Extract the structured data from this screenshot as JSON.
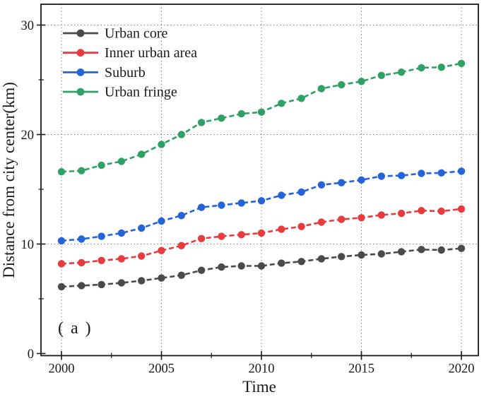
{
  "figure": {
    "annotation": "( a )"
  },
  "chart_data": {
    "type": "line",
    "title": "",
    "xlabel": "Time",
    "ylabel": "Distance from city center(km)",
    "line_style": "dashed",
    "marker": "circle",
    "grid": "dotted-at-major-ticks",
    "legend_position": "top-left-inside",
    "xlim": [
      1999,
      2021
    ],
    "ylim": [
      0,
      32
    ],
    "x_major_ticks": [
      2000,
      2005,
      2010,
      2015,
      2020
    ],
    "x_minor_ticks": [
      2002.5,
      2007.5,
      2012.5,
      2017.5
    ],
    "y_major_ticks": [
      0,
      10,
      20,
      30
    ],
    "y_minor_ticks": [
      5,
      15,
      25
    ],
    "x": [
      2000,
      2001,
      2002,
      2003,
      2004,
      2005,
      2006,
      2007,
      2008,
      2009,
      2010,
      2011,
      2012,
      2013,
      2014,
      2015,
      2016,
      2017,
      2018,
      2019,
      2020
    ],
    "series": [
      {
        "name": "Urban core",
        "color": "#4a4a4a",
        "values": [
          6.1,
          6.2,
          6.3,
          6.45,
          6.65,
          6.9,
          7.15,
          7.6,
          7.9,
          8.0,
          8.0,
          8.25,
          8.4,
          8.65,
          8.85,
          9.0,
          9.1,
          9.3,
          9.5,
          9.45,
          9.6
        ]
      },
      {
        "name": "Inner urban area",
        "color": "#e83b3e",
        "values": [
          8.2,
          8.3,
          8.5,
          8.65,
          8.9,
          9.4,
          9.85,
          10.5,
          10.7,
          10.85,
          11.0,
          11.35,
          11.6,
          12.0,
          12.25,
          12.4,
          12.65,
          12.8,
          13.05,
          13.0,
          13.2
        ]
      },
      {
        "name": "Suburb",
        "color": "#2463d8",
        "values": [
          10.3,
          10.45,
          10.7,
          11.0,
          11.45,
          12.1,
          12.6,
          13.35,
          13.55,
          13.75,
          13.95,
          14.45,
          14.75,
          15.4,
          15.6,
          15.85,
          16.2,
          16.25,
          16.45,
          16.5,
          16.65
        ]
      },
      {
        "name": "Urban fringe",
        "color": "#2fa164",
        "values": [
          16.6,
          16.7,
          17.2,
          17.55,
          18.2,
          19.1,
          20.0,
          21.1,
          21.5,
          21.9,
          22.05,
          22.85,
          23.3,
          24.2,
          24.55,
          24.85,
          25.4,
          25.7,
          26.1,
          26.15,
          26.5
        ]
      }
    ]
  }
}
